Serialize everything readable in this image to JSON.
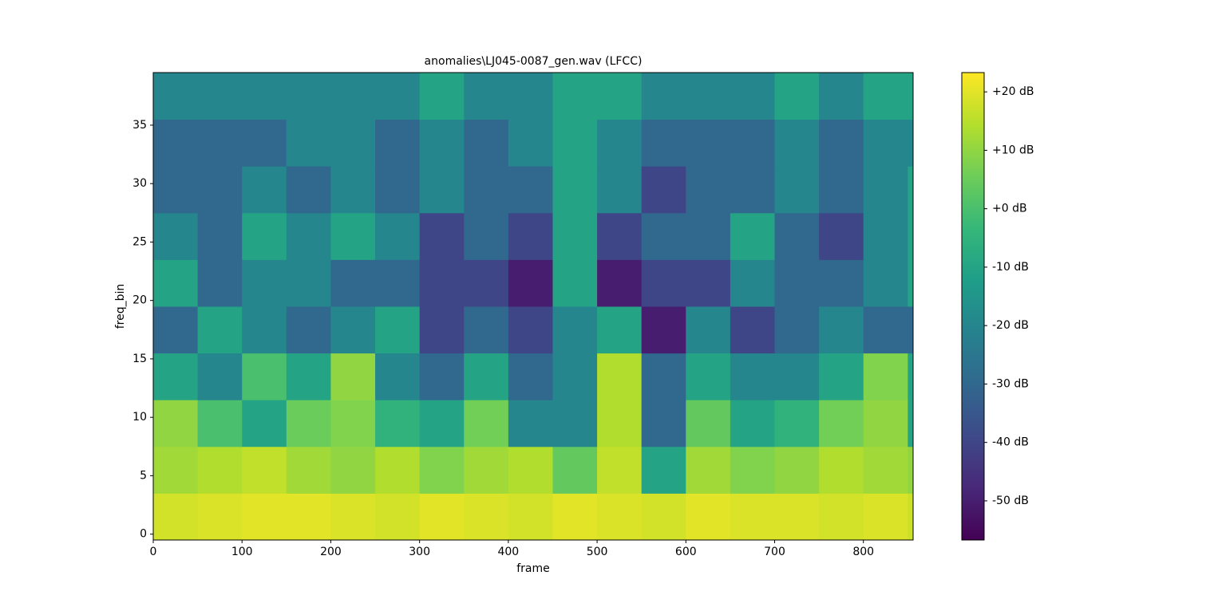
{
  "chart_data": {
    "type": "heatmap",
    "title": "anomalies\\LJ045-0087_gen.wav (LFCC)",
    "x_label": "frame",
    "y_label": "freq_bin",
    "colormap": "viridis",
    "xlim": [
      0,
      856
    ],
    "ylim": [
      -0.5,
      39.5
    ],
    "xticks": [
      0,
      100,
      200,
      300,
      400,
      500,
      600,
      700,
      800
    ],
    "yticks": [
      0,
      5,
      10,
      15,
      20,
      25,
      30,
      35
    ],
    "clim": [
      -56.7,
      23.3
    ],
    "cticks": [
      {
        "value": 20,
        "label": "+20 dB"
      },
      {
        "value": 10,
        "label": "+10 dB"
      },
      {
        "value": 0,
        "label": "+0 dB"
      },
      {
        "value": -10,
        "label": "-10 dB"
      },
      {
        "value": -20,
        "label": "-20 dB"
      },
      {
        "value": -30,
        "label": "-30 dB"
      },
      {
        "value": -40,
        "label": "-40 dB"
      },
      {
        "value": -50,
        "label": "-50 dB"
      }
    ],
    "x_edges": [
      0,
      50,
      100,
      150,
      200,
      250,
      300,
      350,
      400,
      450,
      500,
      550,
      600,
      650,
      700,
      750,
      800,
      850,
      856
    ],
    "y_edges": [
      -0.5,
      3.5,
      7.5,
      11.5,
      15.5,
      19.5,
      23.5,
      27.5,
      31.5,
      35.5,
      39.5
    ],
    "z": [
      [
        18,
        19,
        20,
        20,
        19,
        18,
        20,
        19,
        18,
        20,
        19,
        18,
        20,
        19,
        19,
        18,
        19,
        17
      ],
      [
        12,
        14,
        16,
        12,
        10,
        14,
        8,
        12,
        14,
        4,
        16,
        -10,
        12,
        8,
        10,
        14,
        12,
        10
      ],
      [
        10,
        0,
        -10,
        5,
        8,
        -5,
        -10,
        6,
        -20,
        -20,
        14,
        -30,
        4,
        -10,
        -5,
        6,
        10,
        -10
      ],
      [
        -10,
        -20,
        0,
        -10,
        10,
        -20,
        -30,
        -10,
        -30,
        -20,
        14,
        -30,
        -10,
        -20,
        -20,
        -10,
        8,
        -10
      ],
      [
        -30,
        -10,
        -20,
        -30,
        -20,
        -10,
        -40,
        -30,
        -40,
        -20,
        -10,
        -50,
        -20,
        -40,
        -30,
        -20,
        -30,
        -30
      ],
      [
        -10,
        -30,
        -20,
        -20,
        -30,
        -30,
        -40,
        -40,
        -50,
        -10,
        -50,
        -40,
        -40,
        -20,
        -30,
        -30,
        -20,
        -10
      ],
      [
        -20,
        -30,
        -10,
        -20,
        -10,
        -20,
        -40,
        -30,
        -40,
        -10,
        -40,
        -30,
        -30,
        -10,
        -30,
        -40,
        -20,
        -10
      ],
      [
        -30,
        -30,
        -20,
        -30,
        -20,
        -30,
        -20,
        -30,
        -30,
        -10,
        -20,
        -40,
        -30,
        -30,
        -20,
        -30,
        -20,
        -10
      ],
      [
        -30,
        -30,
        -30,
        -20,
        -20,
        -30,
        -20,
        -30,
        -20,
        -10,
        -20,
        -30,
        -30,
        -30,
        -20,
        -30,
        -20,
        -20
      ],
      [
        -20,
        -20,
        -20,
        -20,
        -20,
        -20,
        -10,
        -20,
        -20,
        -10,
        -10,
        -20,
        -20,
        -20,
        -10,
        -20,
        -10,
        -10
      ]
    ]
  }
}
